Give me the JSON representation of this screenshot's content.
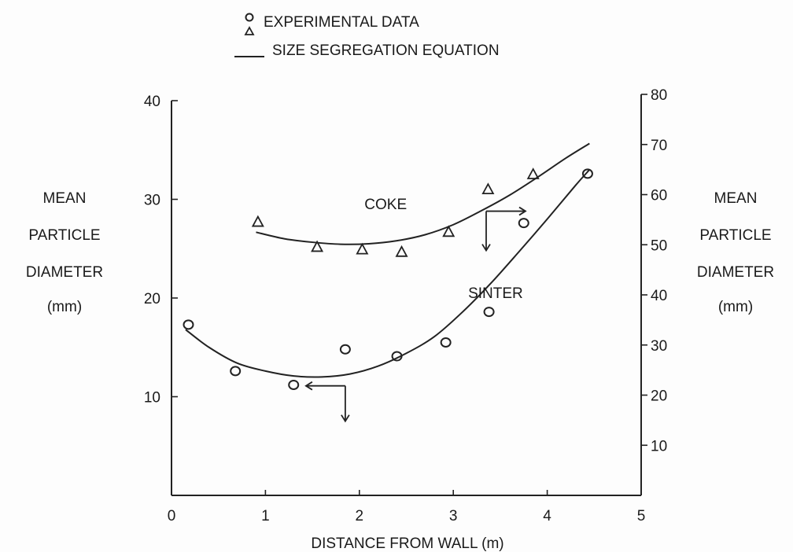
{
  "chart_data": {
    "type": "scatter",
    "xlabel": "DISTANCE FROM WALL (m)",
    "xlim": [
      0,
      5
    ],
    "x_ticks": [
      "0",
      "1",
      "2",
      "3",
      "4",
      "5"
    ],
    "y_left": {
      "label": [
        "MEAN",
        "PARTICLE",
        "DIAMETER",
        "(mm)"
      ],
      "ylim": [
        0,
        40
      ],
      "ticks": [
        "10",
        "20",
        "30",
        "40"
      ]
    },
    "y_right": {
      "label": [
        "MEAN",
        "PARTICLE",
        "DIAMETER",
        "(mm)"
      ],
      "ylim": [
        0,
        80
      ],
      "ticks": [
        "10",
        "20",
        "30",
        "40",
        "50",
        "60",
        "70",
        "80"
      ]
    },
    "legend": {
      "position": "top",
      "entries": [
        {
          "marker": "circle-triangle",
          "label": "EXPERIMENTAL DATA"
        },
        {
          "marker": "line",
          "label": "SIZE SEGREGATION EQUATION"
        }
      ]
    },
    "series": [
      {
        "name": "COKE",
        "axis": "right",
        "marker": "triangle",
        "points": [
          {
            "x": 0.92,
            "y": 54.5
          },
          {
            "x": 1.55,
            "y": 49.5
          },
          {
            "x": 2.03,
            "y": 49.0
          },
          {
            "x": 2.45,
            "y": 48.5
          },
          {
            "x": 2.95,
            "y": 52.5
          },
          {
            "x": 3.37,
            "y": 61.0
          },
          {
            "x": 3.85,
            "y": 64.0
          }
        ],
        "fit": [
          {
            "x": 0.9,
            "y": 52.5
          },
          {
            "x": 1.2,
            "y": 51.2
          },
          {
            "x": 1.5,
            "y": 50.5
          },
          {
            "x": 1.8,
            "y": 50.1
          },
          {
            "x": 2.1,
            "y": 50.2
          },
          {
            "x": 2.4,
            "y": 50.8
          },
          {
            "x": 2.7,
            "y": 52.0
          },
          {
            "x": 3.0,
            "y": 54.0
          },
          {
            "x": 3.3,
            "y": 56.8
          },
          {
            "x": 3.6,
            "y": 59.9
          },
          {
            "x": 3.9,
            "y": 63.5
          },
          {
            "x": 4.2,
            "y": 67.3
          },
          {
            "x": 4.45,
            "y": 70.2
          }
        ]
      },
      {
        "name": "SINTER",
        "axis": "left",
        "marker": "circle",
        "points": [
          {
            "x": 0.18,
            "y": 17.3
          },
          {
            "x": 0.68,
            "y": 12.6
          },
          {
            "x": 1.3,
            "y": 11.2
          },
          {
            "x": 1.85,
            "y": 14.8
          },
          {
            "x": 2.4,
            "y": 14.1
          },
          {
            "x": 2.92,
            "y": 15.5
          },
          {
            "x": 3.38,
            "y": 18.6
          },
          {
            "x": 3.75,
            "y": 27.6
          },
          {
            "x": 4.43,
            "y": 32.6
          }
        ],
        "fit": [
          {
            "x": 0.15,
            "y": 16.8
          },
          {
            "x": 0.4,
            "y": 15.0
          },
          {
            "x": 0.7,
            "y": 13.4
          },
          {
            "x": 1.0,
            "y": 12.6
          },
          {
            "x": 1.3,
            "y": 12.1
          },
          {
            "x": 1.6,
            "y": 12.0
          },
          {
            "x": 1.9,
            "y": 12.3
          },
          {
            "x": 2.2,
            "y": 13.1
          },
          {
            "x": 2.5,
            "y": 14.4
          },
          {
            "x": 2.8,
            "y": 16.1
          },
          {
            "x": 3.1,
            "y": 18.6
          },
          {
            "x": 3.4,
            "y": 21.5
          },
          {
            "x": 3.7,
            "y": 24.7
          },
          {
            "x": 4.0,
            "y": 28.0
          },
          {
            "x": 4.3,
            "y": 31.4
          },
          {
            "x": 4.45,
            "y": 33.0
          }
        ]
      }
    ],
    "annotations": [
      {
        "text": "COKE",
        "x": 2.28,
        "y_left": 29.0
      },
      {
        "text": "SINTER",
        "x": 3.45,
        "y_left": 20.0
      }
    ],
    "axis_indicators": [
      {
        "series": "COKE",
        "points_to": "right",
        "corner": {
          "x": 3.35,
          "y_left": 28.8
        }
      },
      {
        "series": "SINTER",
        "points_to": "left",
        "corner": {
          "x": 1.85,
          "y_left": 11.1
        }
      }
    ]
  }
}
